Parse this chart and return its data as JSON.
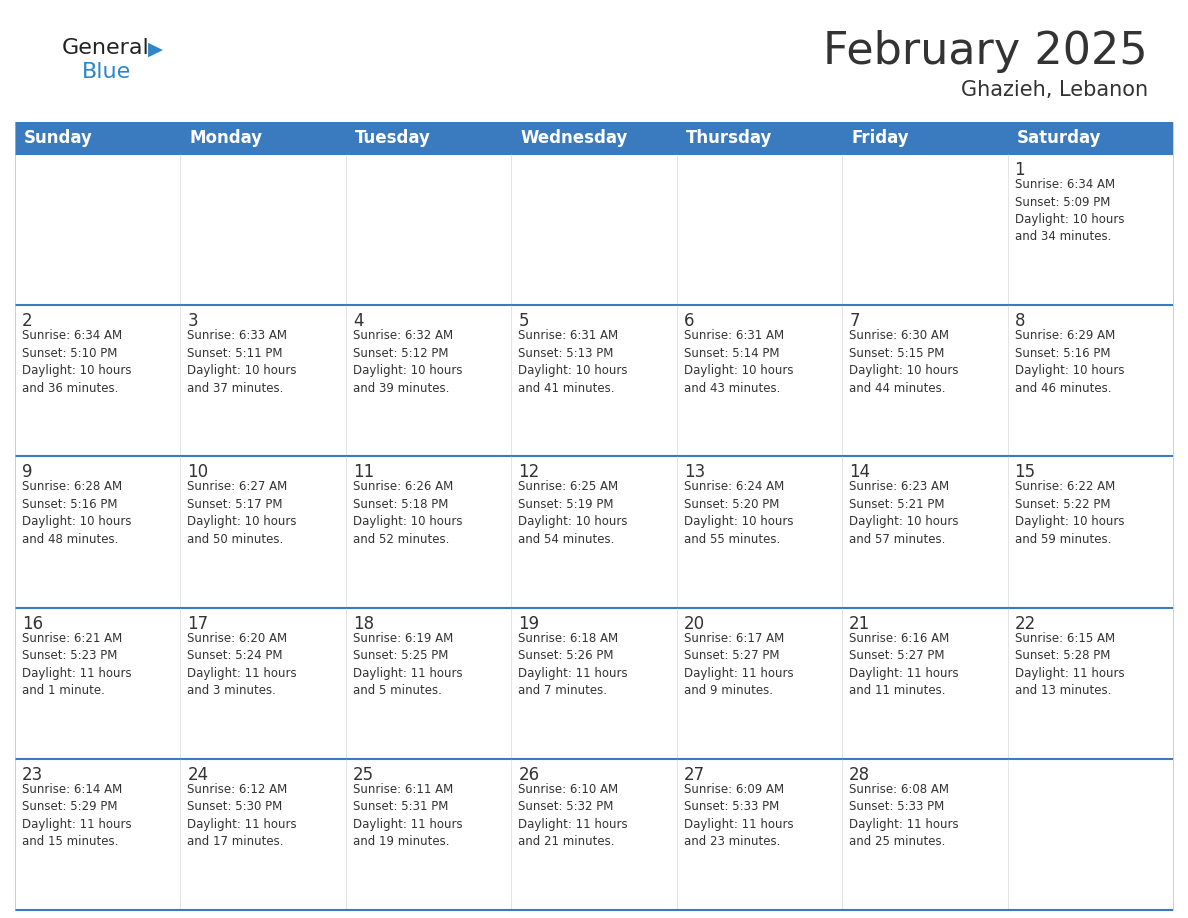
{
  "title": "February 2025",
  "subtitle": "Ghazieh, Lebanon",
  "days_of_week": [
    "Sunday",
    "Monday",
    "Tuesday",
    "Wednesday",
    "Thursday",
    "Friday",
    "Saturday"
  ],
  "header_bg": "#3a7abf",
  "header_text": "#ffffff",
  "cell_bg": "#ffffff",
  "row_line_color": "#3a7abf",
  "text_color": "#333333",
  "logo_general_color": "#222222",
  "logo_blue_color": "#2e86c8",
  "calendar": [
    [
      {
        "day": null,
        "info": null
      },
      {
        "day": null,
        "info": null
      },
      {
        "day": null,
        "info": null
      },
      {
        "day": null,
        "info": null
      },
      {
        "day": null,
        "info": null
      },
      {
        "day": null,
        "info": null
      },
      {
        "day": 1,
        "info": "Sunrise: 6:34 AM\nSunset: 5:09 PM\nDaylight: 10 hours\nand 34 minutes."
      }
    ],
    [
      {
        "day": 2,
        "info": "Sunrise: 6:34 AM\nSunset: 5:10 PM\nDaylight: 10 hours\nand 36 minutes."
      },
      {
        "day": 3,
        "info": "Sunrise: 6:33 AM\nSunset: 5:11 PM\nDaylight: 10 hours\nand 37 minutes."
      },
      {
        "day": 4,
        "info": "Sunrise: 6:32 AM\nSunset: 5:12 PM\nDaylight: 10 hours\nand 39 minutes."
      },
      {
        "day": 5,
        "info": "Sunrise: 6:31 AM\nSunset: 5:13 PM\nDaylight: 10 hours\nand 41 minutes."
      },
      {
        "day": 6,
        "info": "Sunrise: 6:31 AM\nSunset: 5:14 PM\nDaylight: 10 hours\nand 43 minutes."
      },
      {
        "day": 7,
        "info": "Sunrise: 6:30 AM\nSunset: 5:15 PM\nDaylight: 10 hours\nand 44 minutes."
      },
      {
        "day": 8,
        "info": "Sunrise: 6:29 AM\nSunset: 5:16 PM\nDaylight: 10 hours\nand 46 minutes."
      }
    ],
    [
      {
        "day": 9,
        "info": "Sunrise: 6:28 AM\nSunset: 5:16 PM\nDaylight: 10 hours\nand 48 minutes."
      },
      {
        "day": 10,
        "info": "Sunrise: 6:27 AM\nSunset: 5:17 PM\nDaylight: 10 hours\nand 50 minutes."
      },
      {
        "day": 11,
        "info": "Sunrise: 6:26 AM\nSunset: 5:18 PM\nDaylight: 10 hours\nand 52 minutes."
      },
      {
        "day": 12,
        "info": "Sunrise: 6:25 AM\nSunset: 5:19 PM\nDaylight: 10 hours\nand 54 minutes."
      },
      {
        "day": 13,
        "info": "Sunrise: 6:24 AM\nSunset: 5:20 PM\nDaylight: 10 hours\nand 55 minutes."
      },
      {
        "day": 14,
        "info": "Sunrise: 6:23 AM\nSunset: 5:21 PM\nDaylight: 10 hours\nand 57 minutes."
      },
      {
        "day": 15,
        "info": "Sunrise: 6:22 AM\nSunset: 5:22 PM\nDaylight: 10 hours\nand 59 minutes."
      }
    ],
    [
      {
        "day": 16,
        "info": "Sunrise: 6:21 AM\nSunset: 5:23 PM\nDaylight: 11 hours\nand 1 minute."
      },
      {
        "day": 17,
        "info": "Sunrise: 6:20 AM\nSunset: 5:24 PM\nDaylight: 11 hours\nand 3 minutes."
      },
      {
        "day": 18,
        "info": "Sunrise: 6:19 AM\nSunset: 5:25 PM\nDaylight: 11 hours\nand 5 minutes."
      },
      {
        "day": 19,
        "info": "Sunrise: 6:18 AM\nSunset: 5:26 PM\nDaylight: 11 hours\nand 7 minutes."
      },
      {
        "day": 20,
        "info": "Sunrise: 6:17 AM\nSunset: 5:27 PM\nDaylight: 11 hours\nand 9 minutes."
      },
      {
        "day": 21,
        "info": "Sunrise: 6:16 AM\nSunset: 5:27 PM\nDaylight: 11 hours\nand 11 minutes."
      },
      {
        "day": 22,
        "info": "Sunrise: 6:15 AM\nSunset: 5:28 PM\nDaylight: 11 hours\nand 13 minutes."
      }
    ],
    [
      {
        "day": 23,
        "info": "Sunrise: 6:14 AM\nSunset: 5:29 PM\nDaylight: 11 hours\nand 15 minutes."
      },
      {
        "day": 24,
        "info": "Sunrise: 6:12 AM\nSunset: 5:30 PM\nDaylight: 11 hours\nand 17 minutes."
      },
      {
        "day": 25,
        "info": "Sunrise: 6:11 AM\nSunset: 5:31 PM\nDaylight: 11 hours\nand 19 minutes."
      },
      {
        "day": 26,
        "info": "Sunrise: 6:10 AM\nSunset: 5:32 PM\nDaylight: 11 hours\nand 21 minutes."
      },
      {
        "day": 27,
        "info": "Sunrise: 6:09 AM\nSunset: 5:33 PM\nDaylight: 11 hours\nand 23 minutes."
      },
      {
        "day": 28,
        "info": "Sunrise: 6:08 AM\nSunset: 5:33 PM\nDaylight: 11 hours\nand 25 minutes."
      },
      {
        "day": null,
        "info": null
      }
    ]
  ]
}
